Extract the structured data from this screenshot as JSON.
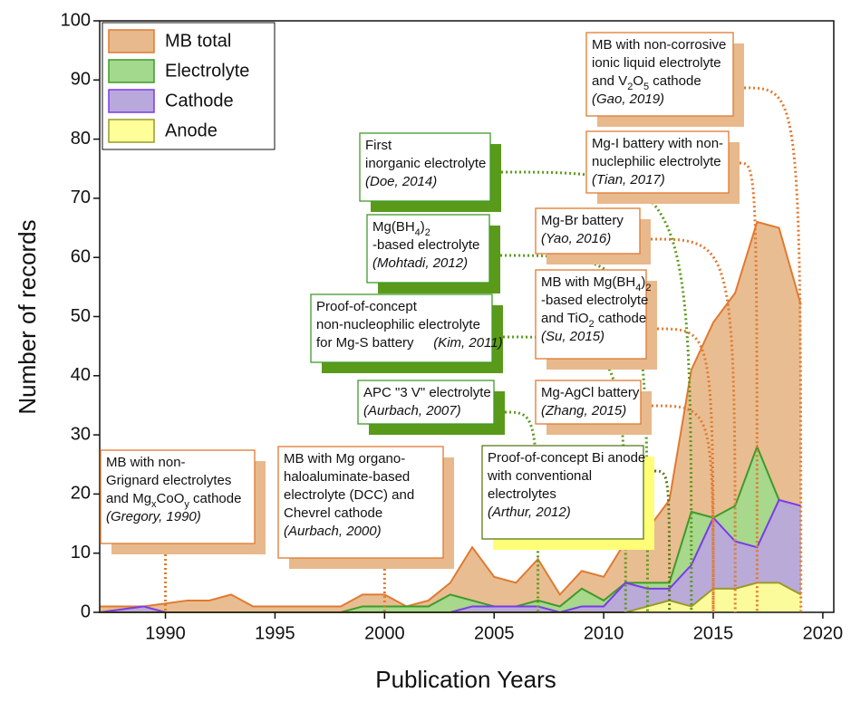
{
  "chart_data": {
    "type": "area",
    "xlabel": "Publication Years",
    "ylabel": "Number of records",
    "x": [
      1987,
      1988,
      1989,
      1990,
      1991,
      1992,
      1993,
      1994,
      1995,
      1996,
      1997,
      1998,
      1999,
      2000,
      2001,
      2002,
      2003,
      2004,
      2005,
      2006,
      2007,
      2008,
      2009,
      2010,
      2011,
      2012,
      2013,
      2014,
      2015,
      2016,
      2017,
      2018,
      2019
    ],
    "series": [
      {
        "name": "MB total",
        "color": "#e8b98c",
        "line_color": "#e07a30",
        "values": [
          1,
          1,
          1,
          1.5,
          2,
          2,
          3,
          1,
          1,
          1,
          1,
          1,
          3,
          3,
          1,
          2,
          5,
          11,
          6,
          5,
          9,
          3,
          7,
          6,
          12,
          14,
          19,
          41,
          49,
          54,
          66,
          65,
          52
        ]
      },
      {
        "name": "Electrolyte",
        "color": "#a3d98c",
        "line_color": "#3f9a2a",
        "values": [
          0,
          0,
          0,
          0,
          0,
          0,
          0,
          0,
          0,
          0,
          0,
          0,
          1,
          1,
          1,
          1,
          3,
          2,
          1,
          1,
          2,
          1,
          4,
          2,
          5,
          5,
          5,
          17,
          16,
          18,
          28,
          19,
          17
        ]
      },
      {
        "name": "Cathode",
        "color": "#b9a8dc",
        "line_color": "#7a3be8",
        "values": [
          0,
          0.5,
          1,
          0,
          0,
          0,
          0,
          0,
          0,
          0,
          0,
          0,
          0,
          0,
          0,
          0,
          0,
          1,
          1,
          1,
          1,
          0,
          1,
          1,
          5,
          4,
          4,
          8,
          16,
          12,
          11,
          19,
          18
        ]
      },
      {
        "name": "Anode",
        "color": "#ffff99",
        "line_color": "#9a9a2a",
        "values": [
          0,
          0,
          0,
          0,
          0,
          0,
          0,
          0,
          0,
          0,
          0,
          0,
          0,
          0,
          0,
          0,
          0,
          0,
          0,
          0,
          0,
          0,
          0,
          0,
          0,
          1,
          2,
          1,
          4,
          4,
          5,
          5,
          3
        ]
      }
    ],
    "xlim": [
      1987,
      2020.5
    ],
    "xticks": [
      1990,
      1995,
      2000,
      2005,
      2010,
      2015,
      2020
    ],
    "ylim": [
      0,
      100
    ],
    "yticks": [
      0,
      10,
      20,
      30,
      40,
      50,
      60,
      70,
      80,
      90,
      100
    ],
    "legend": "upper left",
    "annotations": [
      {
        "lines": [
          [
            "MB with non-"
          ],
          [
            "Grignard electrolytes"
          ],
          [
            "and Mg",
            "x",
            "CoO",
            "y",
            " cathode"
          ]
        ],
        "cite": "(Gregory, 1990)",
        "year": 1990,
        "color": "#e8b98c",
        "border": "#e07a30"
      },
      {
        "lines": [
          [
            "MB with Mg organo-"
          ],
          [
            "haloaluminate-based"
          ],
          [
            "electrolyte (DCC) and"
          ],
          [
            "Chevrel cathode"
          ]
        ],
        "cite": "(Aurbach, 2000)",
        "year": 2000,
        "color": "#e8b98c",
        "border": "#e07a30"
      },
      {
        "lines": [
          [
            "First"
          ],
          [
            "inorganic electrolyte"
          ]
        ],
        "cite": "(Doe, 2014)",
        "year": 2014,
        "color": "#5a9a1a",
        "border": "#3f9a2a"
      },
      {
        "lines": [
          [
            "Mg(BH",
            "4",
            ")",
            "2"
          ],
          [
            "-based electrolyte"
          ]
        ],
        "cite": "(Mohtadi, 2012)",
        "year": 2012,
        "color": "#5a9a1a",
        "border": "#3f9a2a"
      },
      {
        "lines": [
          [
            "Proof-of-concept"
          ],
          [
            "non-nucleophilic electrolyte"
          ],
          [
            "for Mg-S battery "
          ]
        ],
        "cite": "(Kim, 2011)",
        "year": 2011,
        "color": "#5a9a1a",
        "border": "#3f9a2a"
      },
      {
        "lines": [
          [
            "APC \"3 V\" electrolyte"
          ]
        ],
        "cite": "(Aurbach, 2007)",
        "year": 2007,
        "color": "#5a9a1a",
        "border": "#3f9a2a"
      },
      {
        "lines": [
          [
            "Proof-of-concept Bi anode"
          ],
          [
            "with conventional"
          ],
          [
            "electrolytes"
          ]
        ],
        "cite": "(Arthur, 2012)",
        "year": 2013,
        "color": "#ffff77",
        "border": "#5a7a1a"
      },
      {
        "lines": [
          [
            "MB with non-corrosive"
          ],
          [
            "ionic liquid electrolyte"
          ],
          [
            "and V",
            "2",
            "O",
            "5",
            " cathode"
          ]
        ],
        "cite": "(Gao, 2019)",
        "year": 2019,
        "color": "#e8b98c",
        "border": "#e07a30"
      },
      {
        "lines": [
          [
            "Mg-I battery with non-"
          ],
          [
            "nuclephilic electrolyte"
          ]
        ],
        "cite": "(Tian, 2017)",
        "year": 2017,
        "color": "#e8b98c",
        "border": "#e07a30"
      },
      {
        "lines": [
          [
            "Mg-Br battery"
          ]
        ],
        "cite": "(Yao, 2016)",
        "year": 2016,
        "color": "#e8b98c",
        "border": "#e07a30"
      },
      {
        "lines": [
          [
            "MB with Mg(BH",
            "4",
            ")",
            "2"
          ],
          [
            "-based electrolyte"
          ],
          [
            "and TiO",
            "2",
            " cathode"
          ]
        ],
        "cite": "(Su, 2015)",
        "year": 2015,
        "color": "#e8b98c",
        "border": "#e07a30"
      },
      {
        "lines": [
          [
            "Mg-AgCl battery"
          ]
        ],
        "cite": "(Zhang, 2015)",
        "year": 2015,
        "color": "#e8b98c",
        "border": "#e07a30"
      }
    ]
  }
}
